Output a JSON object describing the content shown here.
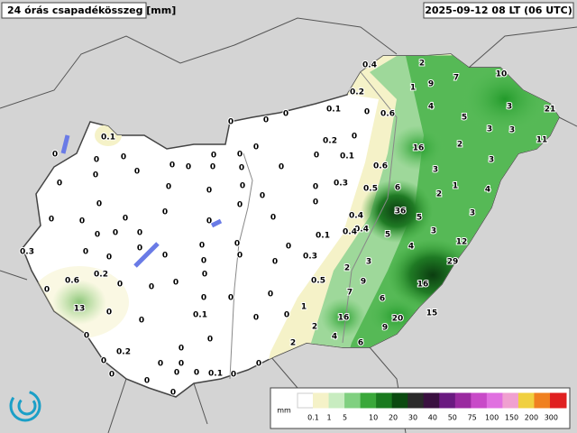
{
  "header": {
    "title": "24 órás csapadékösszeg [mm]",
    "time": "2025-09-12 08 LT (06 UTC)"
  },
  "legend": {
    "unit": "mm",
    "labels": [
      "0.1",
      "1",
      "5",
      "10",
      "20",
      "30",
      "40",
      "50",
      "75",
      "100",
      "150",
      "200",
      "300"
    ]
  },
  "stations": [
    0.4,
    2,
    9,
    7,
    10,
    21,
    11,
    0.2,
    1,
    4,
    5,
    3,
    3,
    0,
    0.1,
    0,
    0.6,
    0,
    0,
    3,
    0.1,
    0.2,
    0,
    16,
    2,
    3,
    0,
    0,
    0,
    0,
    0,
    0,
    0,
    0,
    0,
    0,
    0,
    0,
    0.1,
    0.6,
    3,
    1,
    4,
    0,
    0,
    0,
    0,
    0,
    0,
    0,
    0.3,
    0.5,
    6,
    2,
    0,
    0,
    0,
    0,
    0,
    0,
    0,
    0,
    0,
    0,
    0.4,
    0.4,
    36,
    5,
    3,
    0,
    0,
    0,
    0,
    0,
    0,
    0,
    0.1,
    0.4,
    5,
    3,
    12,
    0.3,
    0,
    0,
    0,
    0,
    0,
    0,
    0.3,
    3,
    4,
    29,
    0.6,
    0.2,
    0,
    0,
    0,
    2,
    9,
    16,
    0,
    0,
    0,
    0,
    0,
    0.5,
    7,
    6,
    13,
    0,
    0.1,
    0,
    0,
    1,
    16,
    20,
    15,
    0,
    0,
    0,
    0,
    2,
    9,
    0.2,
    0,
    0,
    2,
    4,
    6,
    0,
    0,
    0,
    0,
    0,
    0.1,
    0,
    0,
    0
  ]
}
